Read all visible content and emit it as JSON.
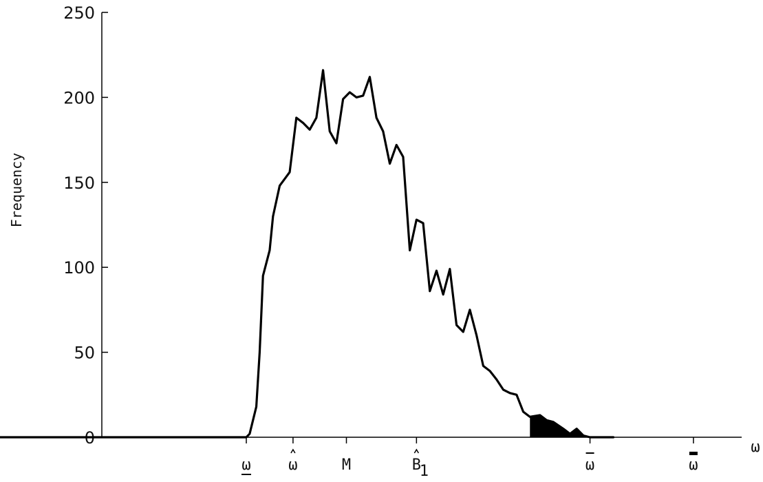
{
  "chart_data": {
    "type": "area",
    "title": "",
    "xlabel": "ω",
    "ylabel": "Frequency",
    "ylim": [
      0,
      250
    ],
    "yticks": [
      0,
      50,
      100,
      150,
      200,
      250
    ],
    "xlim": [
      -75,
      145
    ],
    "x_markers": [
      {
        "label": "ω",
        "decoration": "underline",
        "x": 0
      },
      {
        "label": "ω",
        "decoration": "hat",
        "x": 14
      },
      {
        "label": "M",
        "decoration": "none",
        "x": 30
      },
      {
        "label": "B",
        "subscript": "1",
        "decoration": "hat",
        "x": 51
      },
      {
        "label": "ω",
        "decoration": "overline",
        "x": 103
      },
      {
        "label": "ω",
        "decoration": "double-overline",
        "x": 134
      }
    ],
    "series": [
      {
        "values": [
          [
            -75,
            0
          ],
          [
            0,
            0
          ],
          [
            1,
            2
          ],
          [
            3,
            18
          ],
          [
            4,
            50
          ],
          [
            5,
            95
          ],
          [
            7,
            110
          ],
          [
            8,
            130
          ],
          [
            10,
            148
          ],
          [
            13,
            156
          ],
          [
            15,
            188
          ],
          [
            17,
            185
          ],
          [
            19,
            181
          ],
          [
            21,
            188
          ],
          [
            23,
            216
          ],
          [
            25,
            180
          ],
          [
            27,
            173
          ],
          [
            29,
            199
          ],
          [
            31,
            203
          ],
          [
            33,
            200
          ],
          [
            35,
            201
          ],
          [
            37,
            212
          ],
          [
            39,
            188
          ],
          [
            41,
            180
          ],
          [
            43,
            161
          ],
          [
            45,
            172
          ],
          [
            47,
            165
          ],
          [
            49,
            110
          ],
          [
            51,
            128
          ],
          [
            53,
            126
          ],
          [
            55,
            86
          ],
          [
            57,
            98
          ],
          [
            59,
            84
          ],
          [
            61,
            99
          ],
          [
            63,
            66
          ],
          [
            65,
            62
          ],
          [
            67,
            75
          ],
          [
            69,
            60
          ],
          [
            71,
            42
          ],
          [
            73,
            39
          ],
          [
            75,
            34
          ],
          [
            77,
            28
          ],
          [
            79,
            26
          ],
          [
            81,
            25
          ],
          [
            83,
            15
          ],
          [
            85,
            12
          ],
          [
            88,
            13
          ],
          [
            90,
            10
          ],
          [
            92,
            9
          ],
          [
            95,
            5
          ],
          [
            97,
            2
          ],
          [
            99,
            5
          ],
          [
            101,
            1
          ],
          [
            103,
            0
          ],
          [
            110,
            0
          ]
        ]
      }
    ],
    "shaded_region": {
      "from": 85,
      "to": 103,
      "fill": "#000000"
    },
    "line_color": "#000000",
    "grid": false
  }
}
